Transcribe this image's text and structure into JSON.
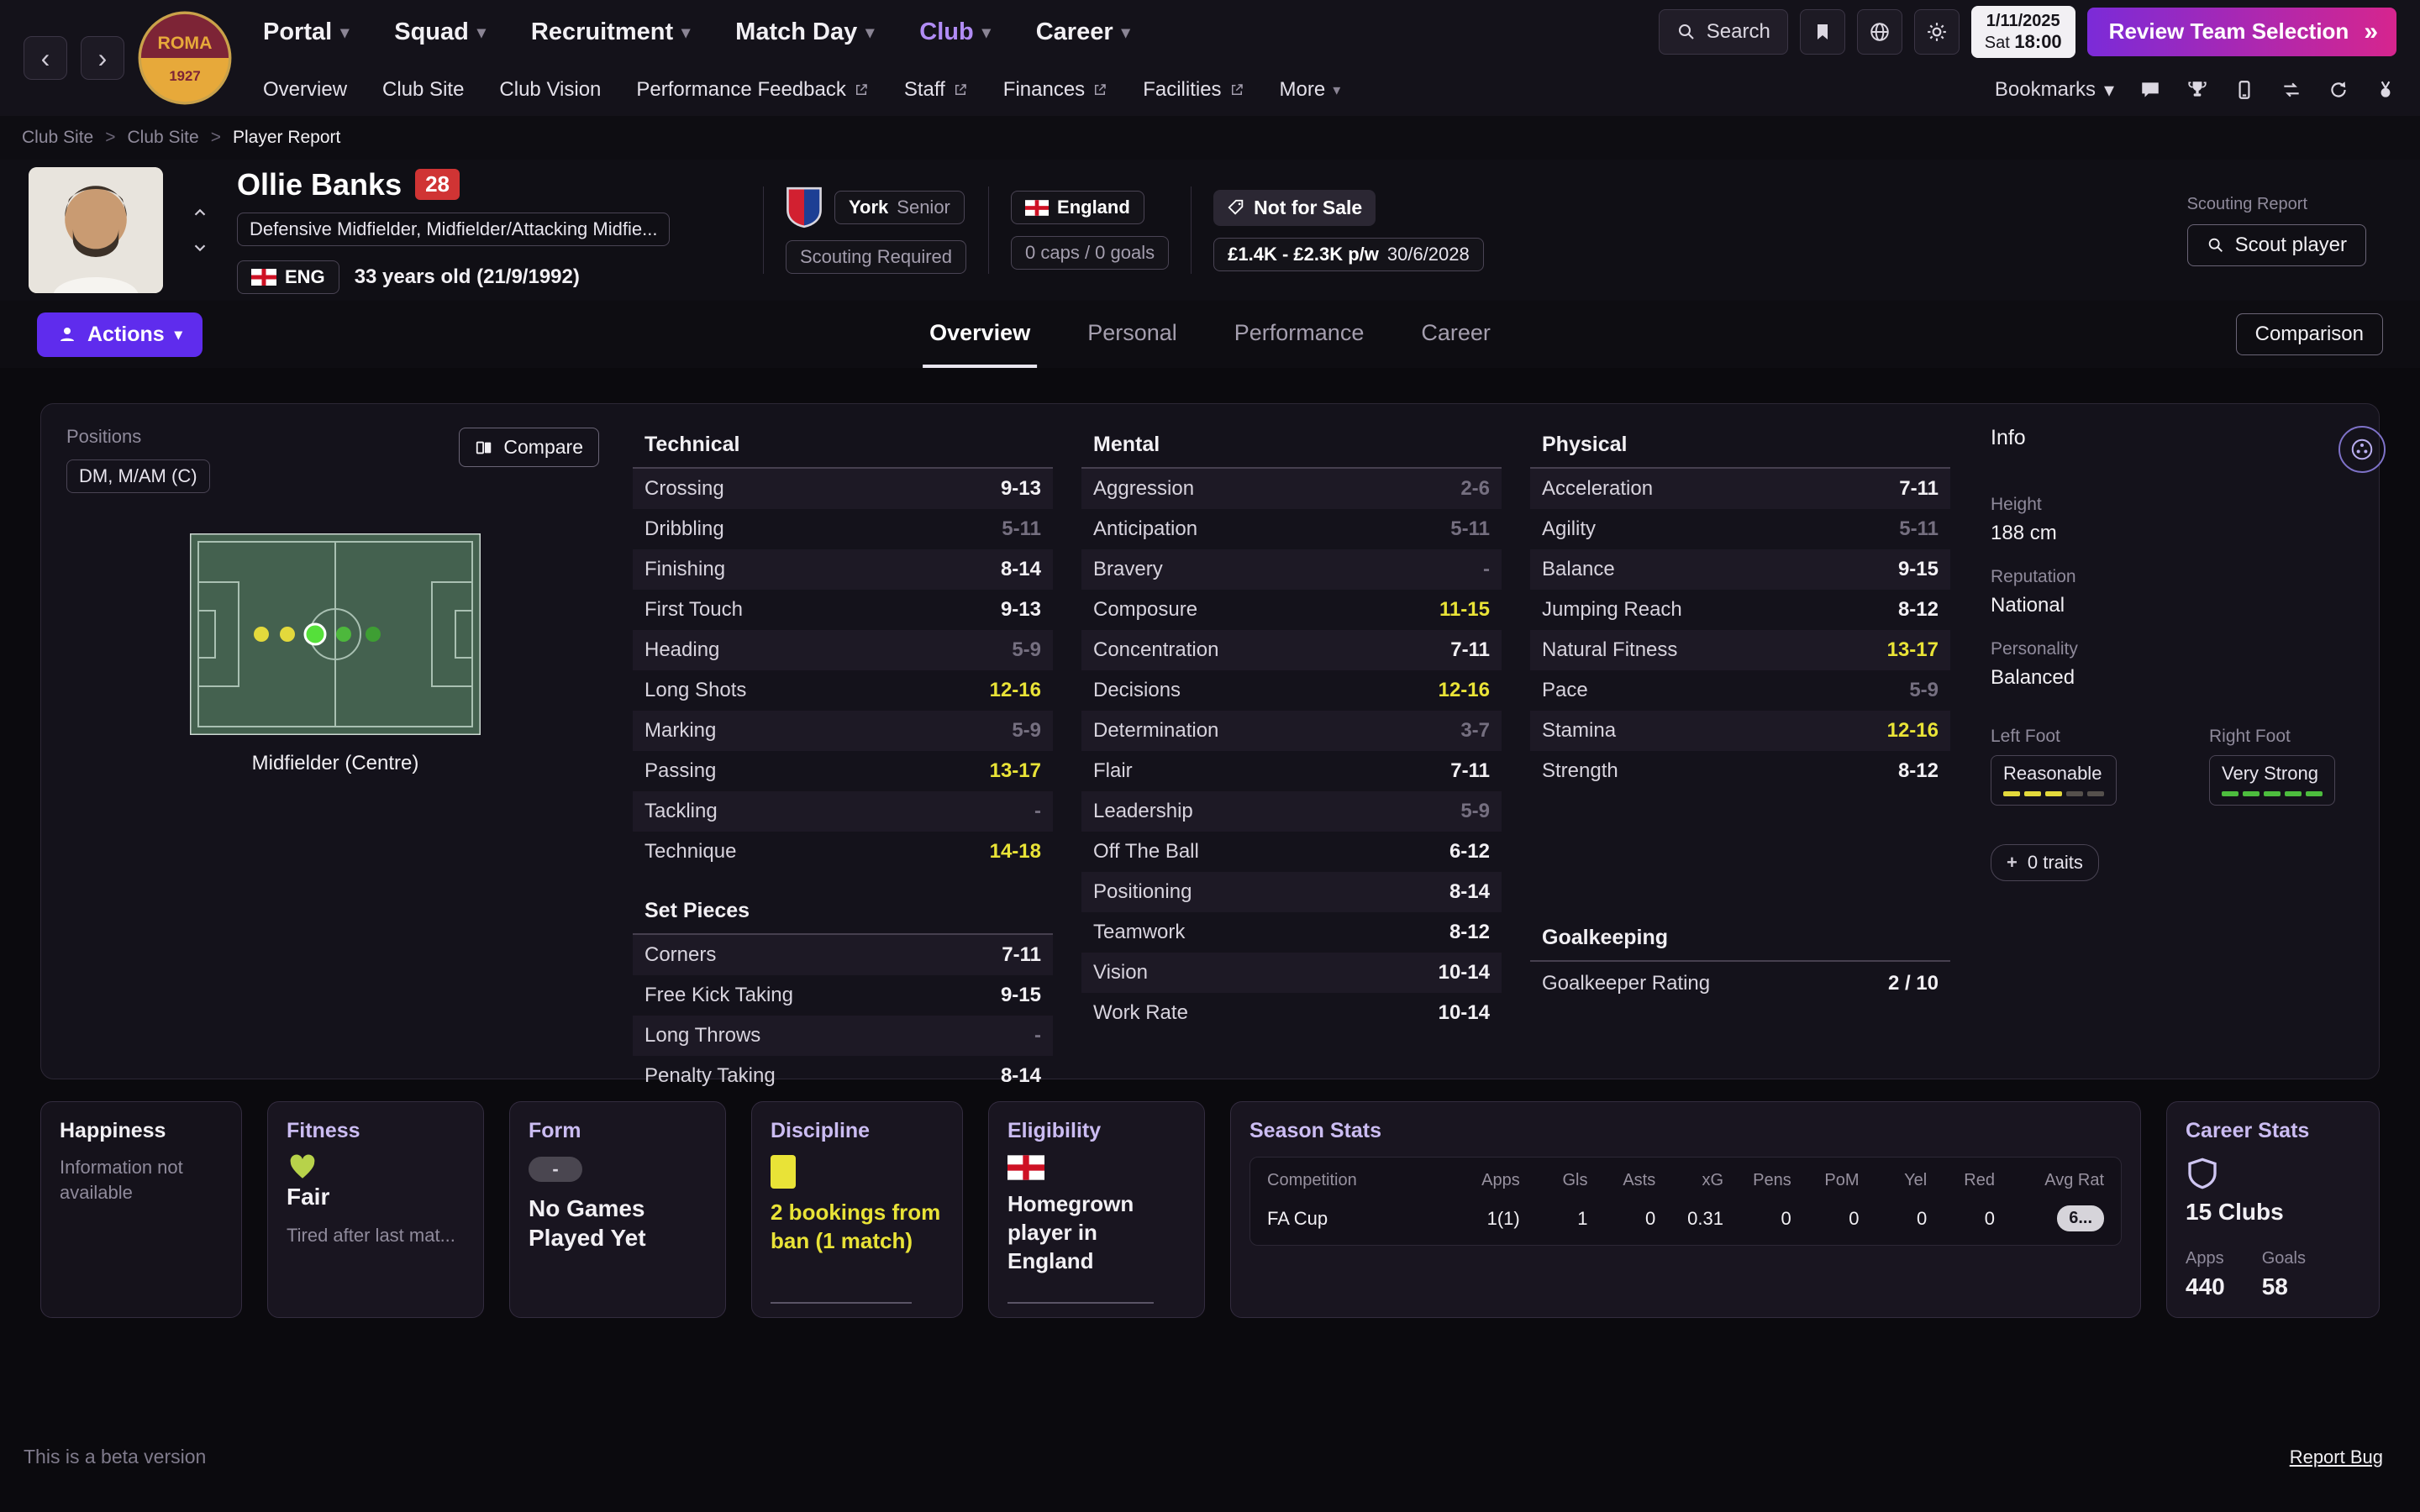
{
  "colors": {
    "accent_purple": "#6f2bdf",
    "active_menu_purple": "#b18cf5",
    "highlight_yellow": "#e9e337",
    "alert_red": "#d03434",
    "positive_green": "#4dbd3e",
    "gradient_button": [
      "#7b2bd8",
      "#d6258e"
    ]
  },
  "topnav": {
    "menus": [
      "Portal",
      "Squad",
      "Recruitment",
      "Match Day",
      "Club",
      "Career"
    ],
    "active_menu": "Club",
    "search_placeholder": "Search",
    "date": {
      "line1": "1/11/2025",
      "day": "Sat",
      "time": "18:00"
    },
    "review_button_label": "Review Team Selection",
    "crest_text": "ROMA",
    "crest_year": "1927"
  },
  "subnav": {
    "items": [
      {
        "label": "Overview"
      },
      {
        "label": "Club Site"
      },
      {
        "label": "Club Vision"
      },
      {
        "label": "Performance Feedback",
        "external": true
      },
      {
        "label": "Staff",
        "external": true
      },
      {
        "label": "Finances",
        "external": true
      },
      {
        "label": "Facilities",
        "external": true
      },
      {
        "label": "More",
        "dropdown": true
      }
    ],
    "bookmarks_label": "Bookmarks"
  },
  "breadcrumb": {
    "items": [
      "Club Site",
      "Club Site",
      "Player Report"
    ]
  },
  "player_header": {
    "name": "Ollie Banks",
    "shirt_number": "28",
    "positions": "Defensive Midfielder, Midfielder/Attacking Midfie...",
    "nation_code": "ENG",
    "age": "33 years old (21/9/1992)",
    "club_name": "York",
    "squad_name": "Senior",
    "scouting_status": "Scouting Required",
    "nation_name": "England",
    "caps": "0 caps / 0 goals",
    "sale_status": "Not for Sale",
    "wage": "£1.4K - £2.3K p/w",
    "contract_until": "30/6/2028",
    "scouting_report_label": "Scouting Report",
    "scout_player_button": "Scout player"
  },
  "toolbar": {
    "actions_label": "Actions",
    "comparison_label": "Comparison",
    "tabs": [
      "Overview",
      "Personal",
      "Performance",
      "Career"
    ],
    "active_tab": "Overview"
  },
  "positions_panel": {
    "title": "Positions",
    "roles_chip": "DM, M/AM (C)",
    "compare_label": "Compare",
    "position_label": "Midfielder (Centre)"
  },
  "attributes": {
    "technical": {
      "title": "Technical",
      "rows": [
        {
          "label": "Crossing",
          "value": "9-13",
          "state": "normal"
        },
        {
          "label": "Dribbling",
          "value": "5-11",
          "state": "low"
        },
        {
          "label": "Finishing",
          "value": "8-14",
          "state": "normal"
        },
        {
          "label": "First Touch",
          "value": "9-13",
          "state": "normal"
        },
        {
          "label": "Heading",
          "value": "5-9",
          "state": "low"
        },
        {
          "label": "Long Shots",
          "value": "12-16",
          "state": "high"
        },
        {
          "label": "Marking",
          "value": "5-9",
          "state": "low"
        },
        {
          "label": "Passing",
          "value": "13-17",
          "state": "high"
        },
        {
          "label": "Tackling",
          "value": "-",
          "state": "low"
        },
        {
          "label": "Technique",
          "value": "14-18",
          "state": "high"
        }
      ]
    },
    "set_pieces": {
      "title": "Set Pieces",
      "rows": [
        {
          "label": "Corners",
          "value": "7-11",
          "state": "normal"
        },
        {
          "label": "Free Kick Taking",
          "value": "9-15",
          "state": "normal"
        },
        {
          "label": "Long Throws",
          "value": "-",
          "state": "low"
        },
        {
          "label": "Penalty Taking",
          "value": "8-14",
          "state": "normal"
        }
      ]
    },
    "mental": {
      "title": "Mental",
      "rows": [
        {
          "label": "Aggression",
          "value": "2-6",
          "state": "low"
        },
        {
          "label": "Anticipation",
          "value": "5-11",
          "state": "low"
        },
        {
          "label": "Bravery",
          "value": "-",
          "state": "low"
        },
        {
          "label": "Composure",
          "value": "11-15",
          "state": "high"
        },
        {
          "label": "Concentration",
          "value": "7-11",
          "state": "normal"
        },
        {
          "label": "Decisions",
          "value": "12-16",
          "state": "high"
        },
        {
          "label": "Determination",
          "value": "3-7",
          "state": "low"
        },
        {
          "label": "Flair",
          "value": "7-11",
          "state": "normal"
        },
        {
          "label": "Leadership",
          "value": "5-9",
          "state": "low"
        },
        {
          "label": "Off The Ball",
          "value": "6-12",
          "state": "normal"
        },
        {
          "label": "Positioning",
          "value": "8-14",
          "state": "normal"
        },
        {
          "label": "Teamwork",
          "value": "8-12",
          "state": "normal"
        },
        {
          "label": "Vision",
          "value": "10-14",
          "state": "normal"
        },
        {
          "label": "Work Rate",
          "value": "10-14",
          "state": "normal"
        }
      ]
    },
    "physical": {
      "title": "Physical",
      "rows": [
        {
          "label": "Acceleration",
          "value": "7-11",
          "state": "normal"
        },
        {
          "label": "Agility",
          "value": "5-11",
          "state": "low"
        },
        {
          "label": "Balance",
          "value": "9-15",
          "state": "normal"
        },
        {
          "label": "Jumping Reach",
          "value": "8-12",
          "state": "normal"
        },
        {
          "label": "Natural Fitness",
          "value": "13-17",
          "state": "high"
        },
        {
          "label": "Pace",
          "value": "5-9",
          "state": "low"
        },
        {
          "label": "Stamina",
          "value": "12-16",
          "state": "high"
        },
        {
          "label": "Strength",
          "value": "8-12",
          "state": "normal"
        }
      ]
    },
    "goalkeeping": {
      "title": "Goalkeeping",
      "label": "Goalkeeper Rating",
      "value": "2 / 10"
    }
  },
  "info_panel": {
    "title": "Info",
    "fields": [
      {
        "label": "Height",
        "value": "188 cm"
      },
      {
        "label": "Reputation",
        "value": "National"
      },
      {
        "label": "Personality",
        "value": "Balanced"
      }
    ],
    "left_foot_label": "Left Foot",
    "left_foot_value": "Reasonable",
    "right_foot_label": "Right Foot",
    "right_foot_value": "Very Strong",
    "traits_label": "0 traits"
  },
  "cards": {
    "happiness": {
      "title": "Happiness",
      "text": "Information not available"
    },
    "fitness": {
      "title": "Fitness",
      "status": "Fair",
      "sub": "Tired after last mat..."
    },
    "form": {
      "title": "Form",
      "pill": "-",
      "text": "No Games Played Yet"
    },
    "discipline": {
      "title": "Discipline",
      "text": "2 bookings from ban (1 match)"
    },
    "eligibility": {
      "title": "Eligibility",
      "text": "Homegrown player in England"
    },
    "season_stats": {
      "title": "Season Stats",
      "columns": [
        "Competition",
        "Apps",
        "Gls",
        "Asts",
        "xG",
        "Pens",
        "PoM",
        "Yel",
        "Red",
        "Avg Rat"
      ],
      "rows": [
        [
          "FA Cup",
          "1(1)",
          "1",
          "0",
          "0.31",
          "0",
          "0",
          "0",
          "0",
          "6..."
        ]
      ]
    },
    "career_stats": {
      "title": "Career Stats",
      "clubs": "15 Clubs",
      "apps_label": "Apps",
      "apps": "440",
      "goals_label": "Goals",
      "goals": "58"
    }
  },
  "footer": {
    "beta_note": "This is a beta version",
    "report_bug": "Report Bug"
  }
}
